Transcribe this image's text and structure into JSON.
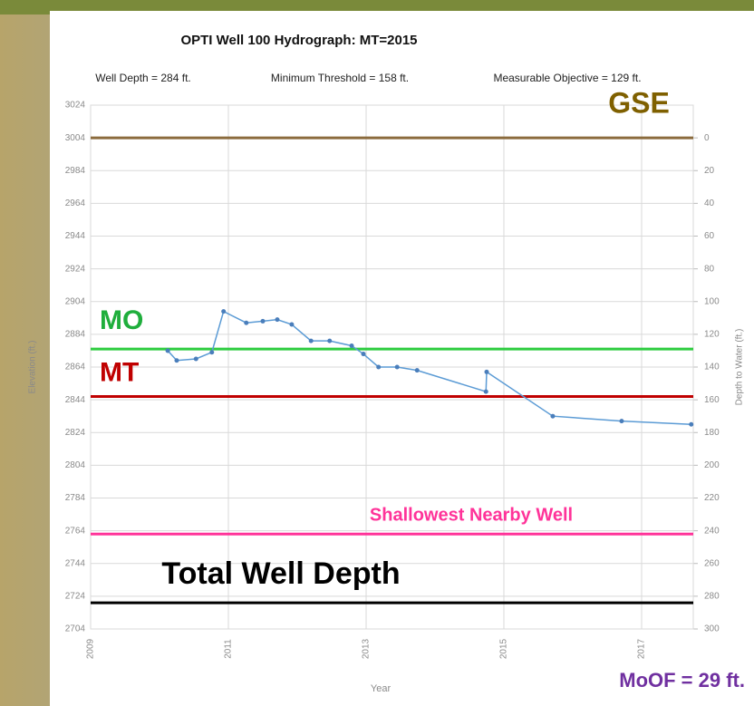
{
  "chart_data": {
    "type": "line",
    "title": "OPTI Well 100 Hydrograph: MT=2015",
    "subtitles": [
      "Well Depth = 284 ft.",
      "Minimum Threshold = 158 ft.",
      "Measurable Objective = 129 ft."
    ],
    "y_label": "Elevation (ft.)",
    "y2_label": "Depth to Water (ft.)",
    "x_label": "Year",
    "footnote": "MoOF = 29 ft.",
    "x": [
      2010.12,
      2010.25,
      2010.53,
      2010.76,
      2010.93,
      2011.26,
      2011.5,
      2011.71,
      2011.92,
      2012.2,
      2012.47,
      2012.79,
      2012.96,
      2013.18,
      2013.45,
      2013.74,
      2014.74,
      2014.75,
      2015.71,
      2016.71,
      2017.72
    ],
    "series": [
      {
        "color": "#5b9bd5",
        "values": [
          2874,
          2868,
          2869,
          2873,
          2898,
          2891,
          2892,
          2893,
          2890,
          2880,
          2880,
          2877,
          2872,
          2864,
          2864,
          2862,
          2849,
          2861,
          2834,
          2831,
          2829
        ]
      }
    ],
    "reference_lines": [
      {
        "label": "GSE",
        "value": 3004,
        "color": "#8b6b3d",
        "text_color": "#7f6000"
      },
      {
        "label": "MO",
        "value": 2875,
        "color": "#2ecc40",
        "text_color": "#1fae3c"
      },
      {
        "label": "MT",
        "value": 2846,
        "color": "#c00000",
        "text_color": "#c00000"
      },
      {
        "label": "Shallowest Nearby Well",
        "value": 2762,
        "color": "#ff3399",
        "text_color": "#ff3399"
      },
      {
        "label": "Total Well Depth",
        "value": 2720,
        "color": "#000000",
        "text_color": "#000000"
      }
    ],
    "xlim": [
      2009,
      2017.75
    ],
    "xticks": [
      2009,
      2011,
      2013,
      2015,
      2017
    ],
    "ylim": [
      2704,
      3024
    ],
    "yticks": [
      2704,
      2724,
      2744,
      2764,
      2784,
      2804,
      2824,
      2844,
      2864,
      2884,
      2904,
      2924,
      2944,
      2964,
      2984,
      3004,
      3024
    ],
    "y2lim": [
      300,
      -20
    ],
    "y2ticks": [
      0,
      20,
      40,
      60,
      80,
      100,
      120,
      140,
      160,
      180,
      200,
      220,
      240,
      260,
      280,
      300
    ],
    "grid": true
  }
}
